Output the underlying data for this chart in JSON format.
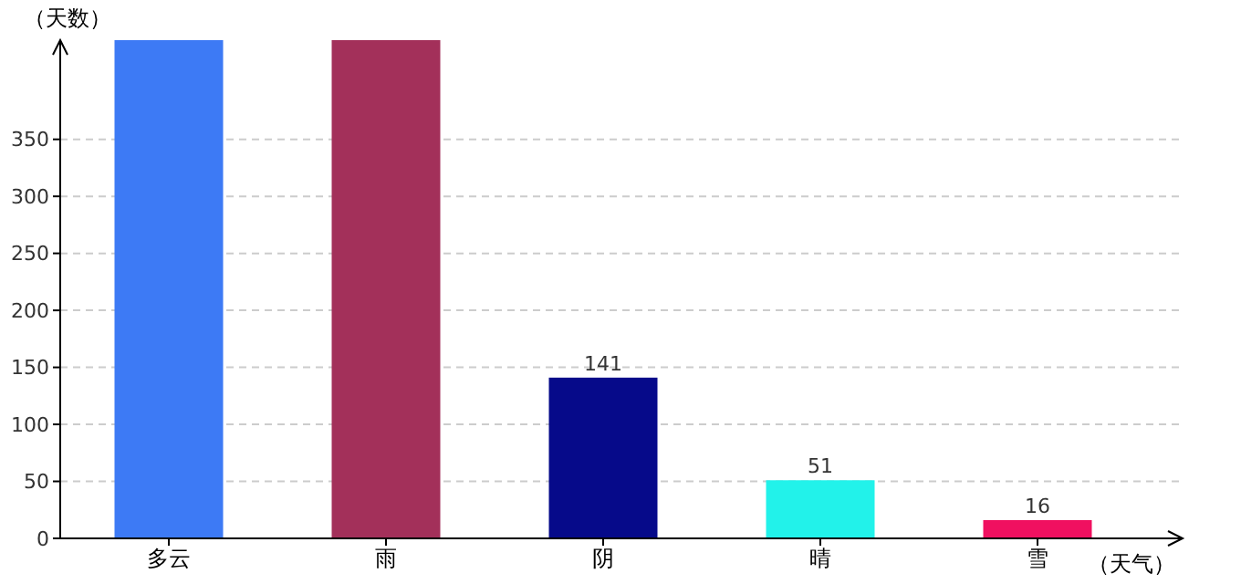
{
  "chart_data": {
    "type": "bar",
    "xlabel": "（天气）",
    "ylabel": "（天数）",
    "categories": [
      "多云",
      "雨",
      "阴",
      "晴",
      "雪"
    ],
    "values": [
      437,
      437,
      141,
      51,
      16
    ],
    "colors": [
      "#3d7af5",
      "#a3305a",
      "#060a8a",
      "#22f2ea",
      "#f01060"
    ],
    "value_labels": [
      null,
      null,
      "141",
      "51",
      "16"
    ],
    "ylim": [
      0,
      437
    ],
    "yticks": [
      0,
      50,
      100,
      150,
      200,
      250,
      300,
      350
    ],
    "grid": "y"
  }
}
